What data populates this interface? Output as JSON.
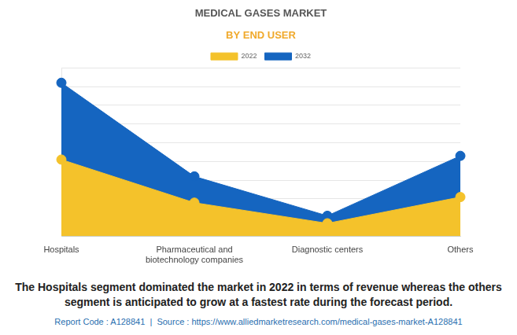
{
  "chart_data": {
    "type": "area",
    "title": "MEDICAL GASES MARKET",
    "subtitle": "BY END USER",
    "categories": [
      "Hospitals",
      "Pharmaceutical and biotechnology companies",
      "Diagnostic centers",
      "Others"
    ],
    "series": [
      {
        "name": "2022",
        "color": "#f4c22b",
        "values": [
          4.1,
          1.8,
          0.7,
          2.1
        ]
      },
      {
        "name": "2032",
        "color": "#1565c0",
        "values": [
          8.2,
          3.2,
          1.1,
          4.3
        ]
      }
    ],
    "ylim": [
      0,
      9
    ],
    "yticks": [
      0,
      1,
      2,
      3,
      4,
      5,
      6,
      7,
      8,
      9
    ],
    "grid": true,
    "legend": "top",
    "tick_labels": "x",
    "marker": "circle"
  },
  "caption": "The Hospitals segment dominated the market in 2022 in terms of revenue whereas the others segment is anticipated to grow at a fastest rate during the forecast period.",
  "source": "Report Code : A128841  |  Source : https://www.alliedmarketresearch.com/medical-gases-market-A128841"
}
